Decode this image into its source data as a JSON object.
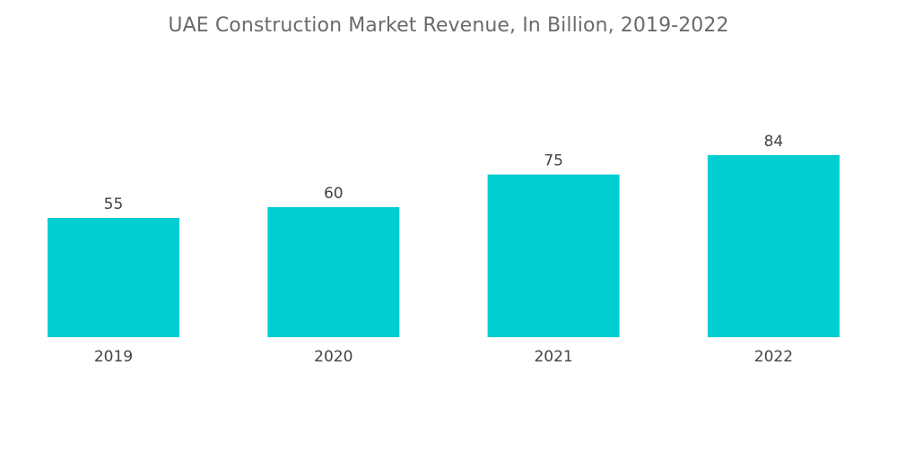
{
  "chart_data": {
    "type": "bar",
    "title": "UAE Construction Market Revenue, In Billion, 2019-2022",
    "categories": [
      "2019",
      "2020",
      "2021",
      "2022"
    ],
    "values": [
      55,
      60,
      75,
      84
    ],
    "xlabel": "",
    "ylabel": "",
    "ylim": [
      0,
      110
    ],
    "grid": false,
    "legend": "none",
    "bar_color": "#00CED1"
  }
}
